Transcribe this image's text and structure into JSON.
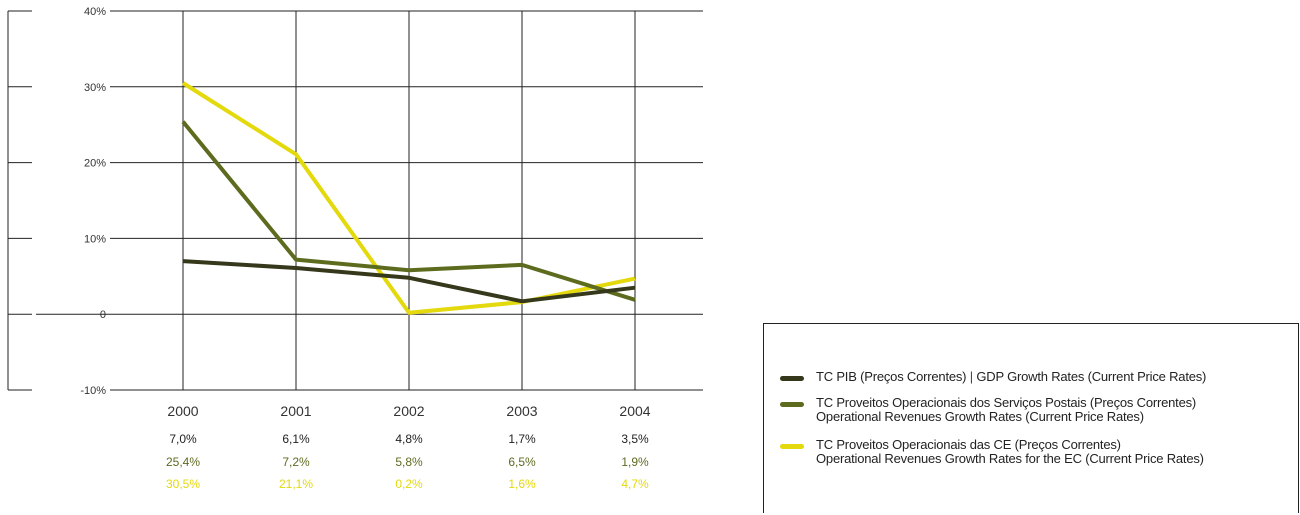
{
  "colors": {
    "series_gdp": "#35381a",
    "series_postal": "#5d6b1f",
    "series_ec": "#e3d90c",
    "grid": "#222222",
    "text": "#333333"
  },
  "chart_data": {
    "type": "line",
    "categories": [
      "2000",
      "2001",
      "2002",
      "2003",
      "2004"
    ],
    "ylim": [
      -10,
      40
    ],
    "yticks": [
      -10,
      0,
      10,
      20,
      30,
      40
    ],
    "ytick_labels": [
      "-10%",
      "0",
      "10%",
      "20%",
      "30%",
      "40%"
    ],
    "grid": true,
    "legend_position": "bottom-right",
    "series": [
      {
        "name": "TC PIB (Preços Correntes) | GDP Growth Rates (Current Price Rates)",
        "values": [
          7.0,
          6.1,
          4.8,
          1.7,
          3.5
        ],
        "labels": [
          "7,0%",
          "6,1%",
          "4,8%",
          "1,7%",
          "3,5%"
        ],
        "color": "#35381a"
      },
      {
        "name": "TC Proveitos Operacionais dos Serviços Postais (Preços Correntes) Operational Revenues Growth Rates (Current Price Rates)",
        "values": [
          25.4,
          7.2,
          5.8,
          6.5,
          1.9
        ],
        "labels": [
          "25,4%",
          "7,2%",
          "5,8%",
          "6,5%",
          "1,9%"
        ],
        "color": "#5d6b1f"
      },
      {
        "name": "TC Proveitos Operacionais das CE (Preços Correntes) Operational Revenues Growth Rates for the EC (Current Price Rates)",
        "values": [
          30.5,
          21.1,
          0.2,
          1.6,
          4.7
        ],
        "labels": [
          "30,5%",
          "21,1%",
          "0,2%",
          "1,6%",
          "4,7%"
        ],
        "color": "#e3d90c"
      }
    ]
  },
  "legend": {
    "items": [
      {
        "line1": "TC PIB (Preços Correntes)",
        "separator": " | ",
        "line1b": "GDP Growth Rates (Current Price Rates)",
        "line2": ""
      },
      {
        "line1": "TC Proveitos Operacionais dos Serviços Postais (Preços Correntes)",
        "separator": "",
        "line1b": "",
        "line2": "Operational Revenues Growth Rates (Current Price Rates)"
      },
      {
        "line1": "TC Proveitos Operacionais das CE (Preços Correntes)",
        "separator": "",
        "line1b": "",
        "line2": "Operational Revenues Growth Rates for the EC (Current Price Rates)"
      }
    ]
  }
}
